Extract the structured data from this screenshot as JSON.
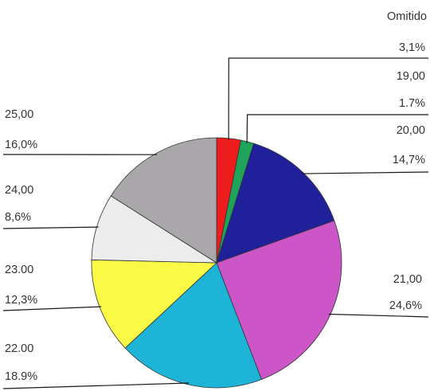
{
  "chart_data": {
    "type": "pie",
    "start": "top",
    "direction": "clockwise",
    "slices": [
      {
        "key": "omitido",
        "category": "Omitido",
        "percent_label": "3,1%",
        "value": 3.1,
        "color": "#ee1c1c"
      },
      {
        "key": "19",
        "category": "19,00",
        "percent_label": "1.7%",
        "value": 1.7,
        "color": "#1fa35a"
      },
      {
        "key": "20",
        "category": "20,00",
        "percent_label": "14,7%",
        "value": 14.7,
        "color": "#20209a"
      },
      {
        "key": "21",
        "category": "21,00",
        "percent_label": "24,6%",
        "value": 24.6,
        "color": "#cc55c8"
      },
      {
        "key": "22",
        "category": "22.00",
        "percent_label": "18.9%",
        "value": 18.9,
        "color": "#1eb4d8"
      },
      {
        "key": "23",
        "category": "23.00",
        "percent_label": "12,3%",
        "value": 12.3,
        "color": "#fafa46"
      },
      {
        "key": "24",
        "category": "24,00",
        "percent_label": "8,6%",
        "value": 8.6,
        "color": "#ececec"
      },
      {
        "key": "25",
        "category": "25,00",
        "percent_label": "16,0%",
        "value": 16.0,
        "color": "#a9a7aa"
      }
    ]
  }
}
